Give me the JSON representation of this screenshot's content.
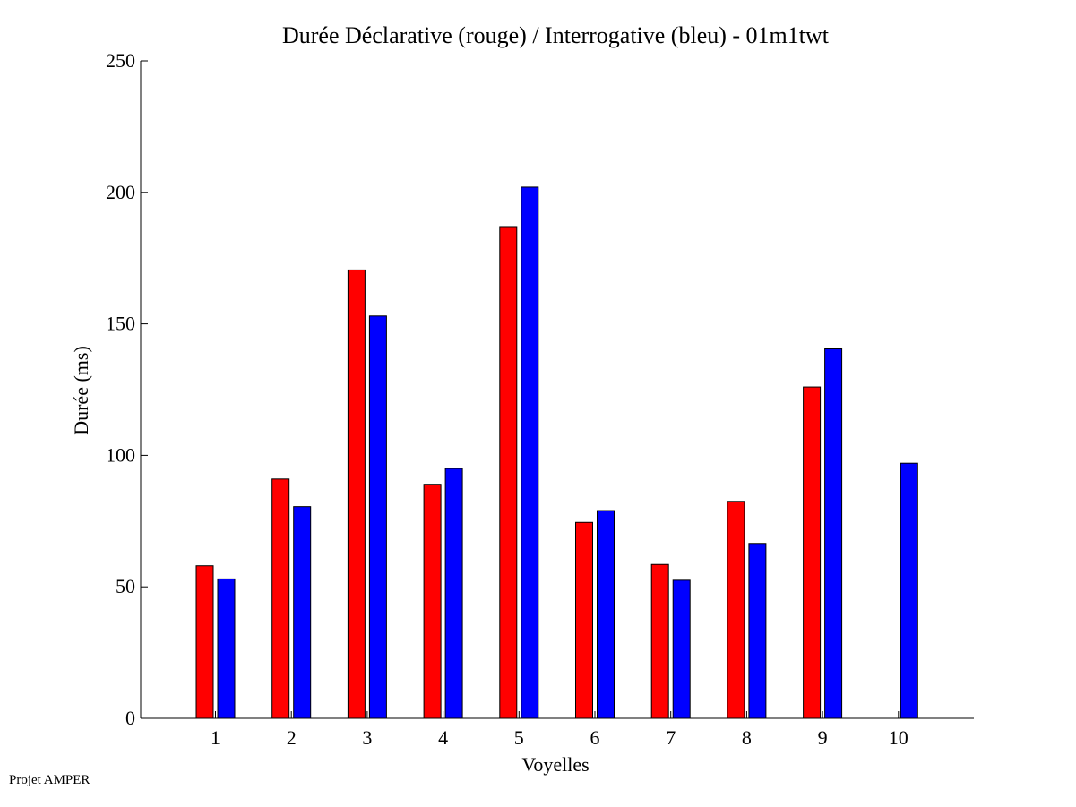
{
  "chart_data": {
    "type": "bar",
    "title": "Durée Déclarative (rouge) / Interrogative (bleu) - 01m1twt",
    "xlabel": "Voyelles",
    "ylabel": "Durée (ms)",
    "ylim": [
      0,
      250
    ],
    "yticks": [
      0,
      50,
      100,
      150,
      200,
      250
    ],
    "categories": [
      "1",
      "2",
      "3",
      "4",
      "5",
      "6",
      "7",
      "8",
      "9",
      "10"
    ],
    "series": [
      {
        "name": "Déclarative",
        "color": "#ff0000",
        "values": [
          58,
          91,
          170.5,
          89,
          187,
          74.5,
          58.5,
          82.5,
          126,
          0
        ]
      },
      {
        "name": "Interrogative",
        "color": "#0000ff",
        "values": [
          53,
          80.5,
          153,
          95,
          202,
          79,
          52.5,
          66.5,
          140.5,
          97
        ]
      }
    ]
  },
  "footer": {
    "label": "Projet AMPER"
  }
}
